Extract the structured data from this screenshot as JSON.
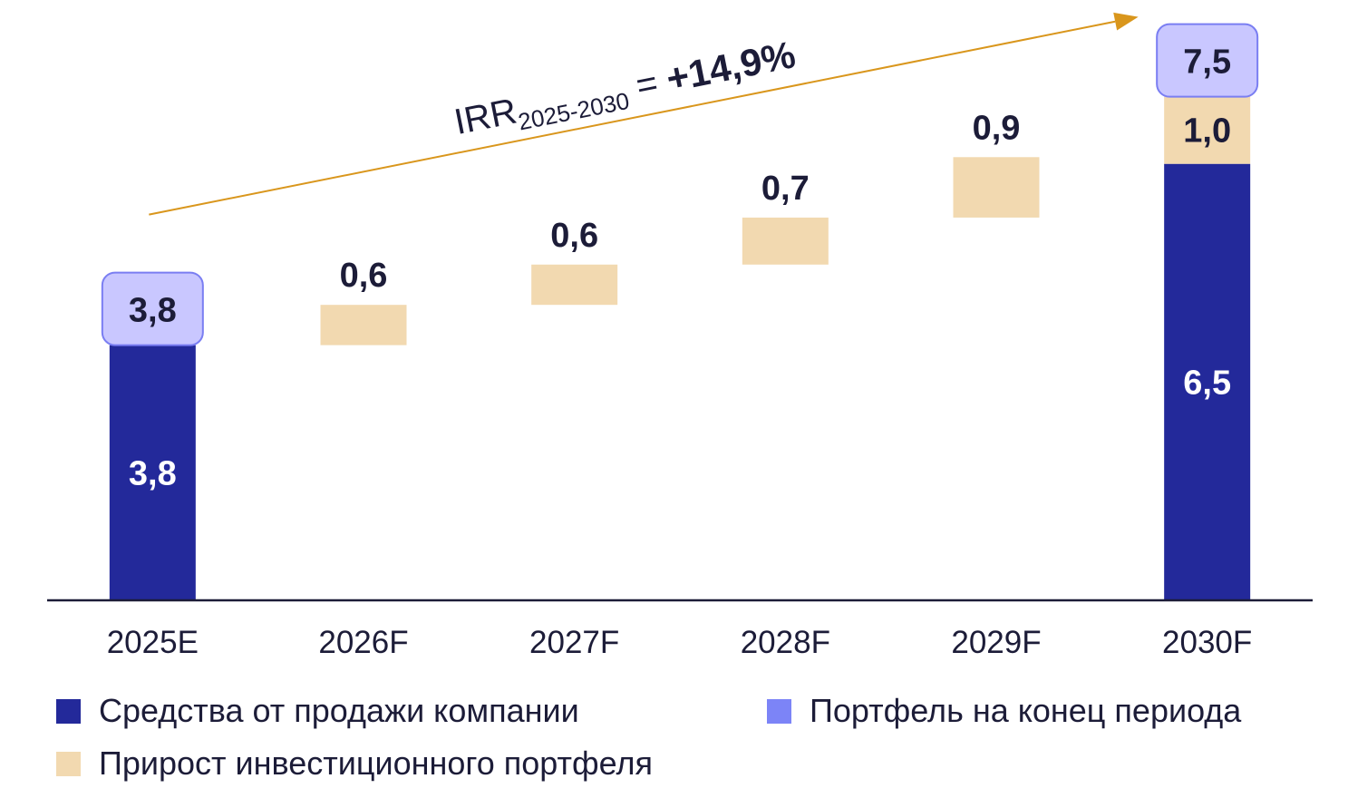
{
  "colors": {
    "sale": "#23299a",
    "growth": "#f2d9b0",
    "portfolio_fill": "#c9c7ff",
    "portfolio_border": "#7a7ef2",
    "portfolio_legend": "#7c84f7",
    "arrow": "#d9961c",
    "text": "#1c1c38",
    "axis": "#1c1c38"
  },
  "chart_data": {
    "type": "bar",
    "subtype": "waterfall",
    "categories": [
      "2025E",
      "2026F",
      "2027F",
      "2028F",
      "2029F",
      "2030F"
    ],
    "series": [
      {
        "name": "Средства от продажи компании",
        "values": [
          3.8,
          null,
          null,
          null,
          null,
          6.5
        ],
        "labels": [
          "3,8",
          "",
          "",
          "",
          "",
          "6,5"
        ]
      },
      {
        "name": "Прирост инвестиционного портфеля",
        "values": [
          null,
          0.6,
          0.6,
          0.7,
          0.9,
          1.0
        ],
        "labels": [
          "",
          "0,6",
          "0,6",
          "0,7",
          "0,9",
          "1,0"
        ]
      },
      {
        "name": "Портфель на конец периода",
        "values": [
          3.8,
          null,
          null,
          null,
          null,
          7.5
        ],
        "labels": [
          "3,8",
          "",
          "",
          "",
          "",
          "7,5"
        ]
      }
    ],
    "annotation": {
      "prefix": "IRR",
      "subscript": "2025-2030",
      "equals": " = ",
      "value": "+14,9%"
    },
    "ylim": [
      0,
      8.4
    ],
    "legend_position": "bottom",
    "grid": false
  }
}
